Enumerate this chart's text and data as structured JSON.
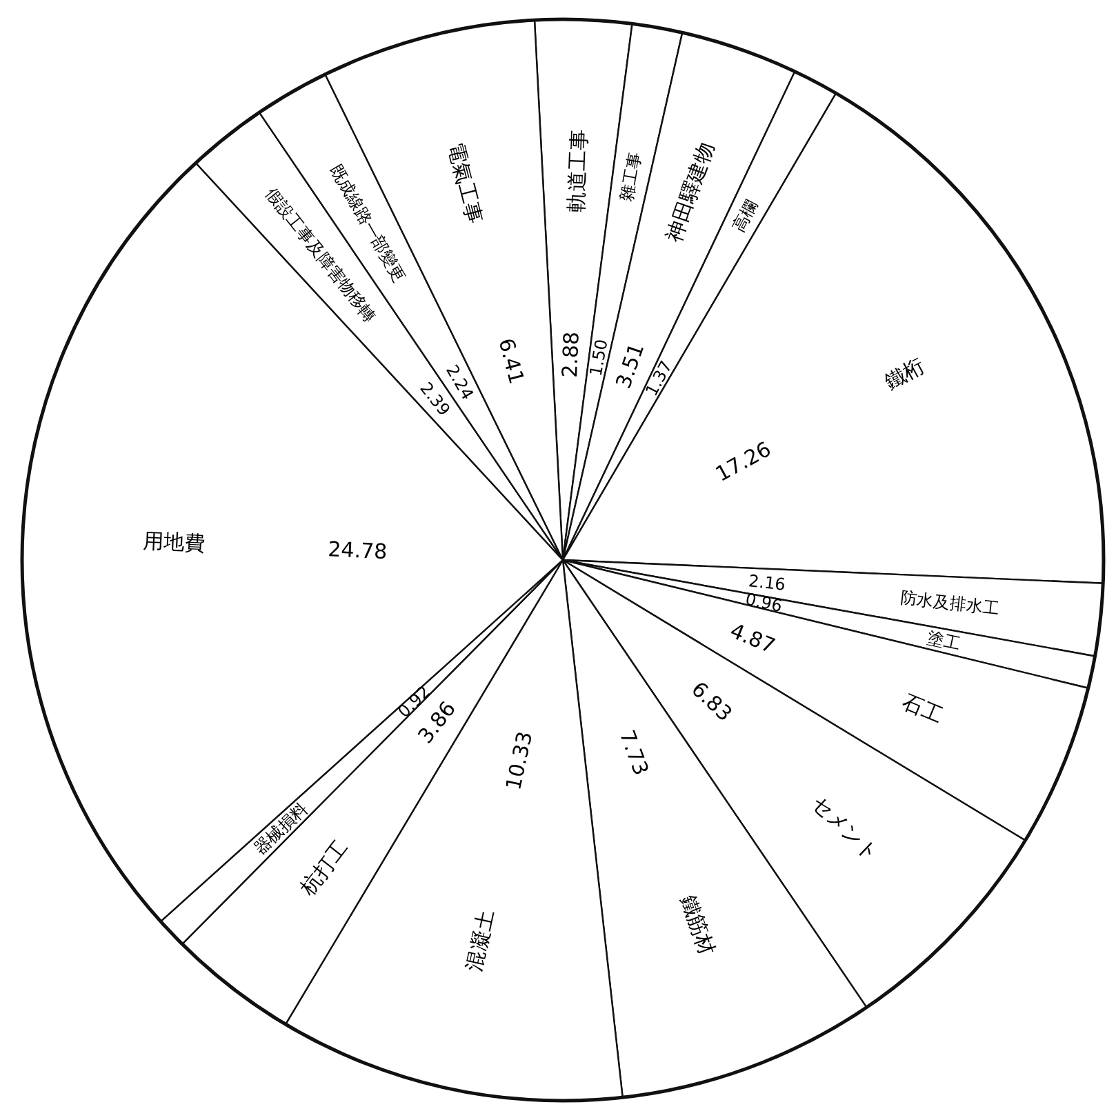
{
  "chart_data": {
    "type": "pie",
    "categories": [
      "軌道工事",
      "雜工事",
      "神田驛建物",
      "高欄",
      "鐵桁",
      "防水及排水工",
      "塗工",
      "石工",
      "セメント",
      "鐵筋材",
      "混凝土",
      "杭打工",
      "器械損料",
      "用地費",
      "假設工事及障害物移轉",
      "既成線路一部變更",
      "電氣工事"
    ],
    "values": [
      2.88,
      1.5,
      3.51,
      1.37,
      17.26,
      2.16,
      0.96,
      4.87,
      6.83,
      7.73,
      10.33,
      3.86,
      0.92,
      24.78,
      2.39,
      2.24,
      6.41
    ],
    "value_labels": [
      "2.88",
      "1.50",
      "3.51",
      "1.37",
      "17.26",
      "2.16",
      "0.96",
      "4.87",
      "6.83",
      "7.73",
      "10.33",
      "3.86",
      "0.92",
      "24.78",
      "2.39",
      "2.24",
      "6.41"
    ],
    "colors": [
      "#ffffff",
      "#ffffff",
      "#ffffff",
      "#ffffff",
      "#ffffff",
      "#ffffff",
      "#ffffff",
      "#ffffff",
      "#ffffff",
      "#ffffff",
      "#ffffff",
      "#ffffff",
      "#ffffff",
      "#ffffff",
      "#ffffff",
      "#ffffff",
      "#ffffff"
    ]
  }
}
